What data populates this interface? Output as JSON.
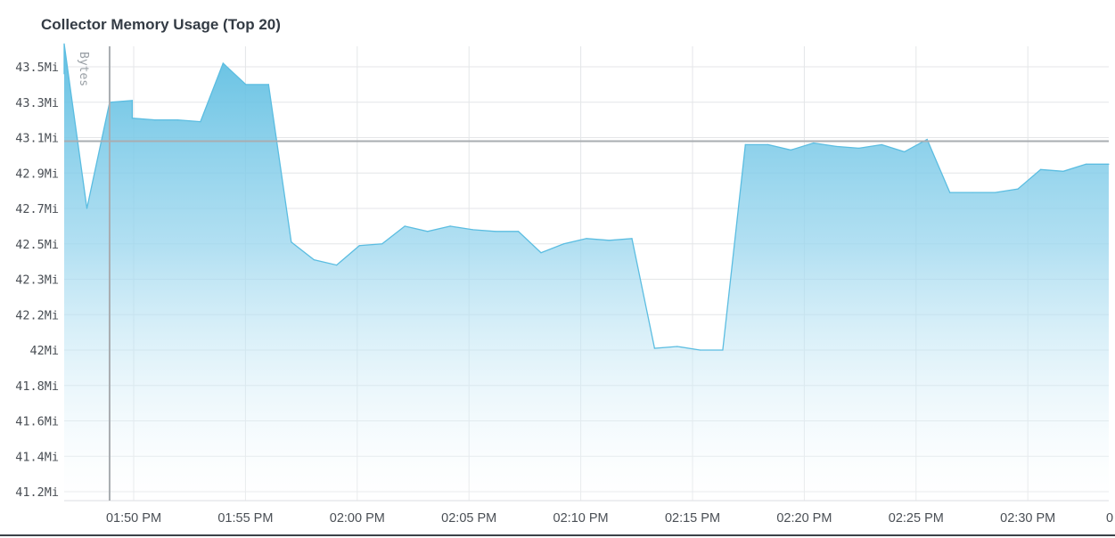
{
  "chart_data": {
    "type": "area",
    "title": "Collector Memory Usage (Top 20)",
    "ylabel": "Bytes",
    "xlabel": "",
    "y_unit": "Mi",
    "yticks": [
      "41.2Mi",
      "41.4Mi",
      "41.6Mi",
      "41.8Mi",
      "42Mi",
      "42.2Mi",
      "42.3Mi",
      "42.5Mi",
      "42.7Mi",
      "42.9Mi",
      "43.1Mi",
      "43.3Mi",
      "43.5Mi"
    ],
    "xticks": [
      "01:50 PM",
      "01:55 PM",
      "02:00 PM",
      "02:05 PM",
      "02:10 PM",
      "02:15 PM",
      "02:20 PM",
      "02:25 PM",
      "02:30 PM",
      "0"
    ],
    "x_axis": {
      "start": "01:47 PM",
      "end": "02:33 PM",
      "unit": "minutes"
    },
    "ylim": [
      41.12,
      43.63
    ],
    "grid": true,
    "threshold": 43.08,
    "cursor_time": "01:49 PM",
    "series": [
      {
        "color": "#5bbde1",
        "x": [
          "01:47 PM",
          "01:47 PM",
          "01:48 PM",
          "01:49 PM",
          "01:50 PM",
          "01:50 PM",
          "01:51 PM",
          "01:52 PM",
          "01:53 PM",
          "01:54 PM",
          "01:55 PM",
          "01:56 PM",
          "01:57 PM",
          "01:58 PM",
          "01:59 PM",
          "02:00 PM",
          "02:01 PM",
          "02:02 PM",
          "02:03 PM",
          "02:04 PM",
          "02:05 PM",
          "02:06 PM",
          "02:07 PM",
          "02:08 PM",
          "02:09 PM",
          "02:10 PM",
          "02:11 PM",
          "02:12 PM",
          "02:13 PM",
          "02:14 PM",
          "02:15 PM",
          "02:16 PM",
          "02:17 PM",
          "02:18 PM",
          "02:19 PM",
          "02:20 PM",
          "02:21 PM",
          "02:22 PM",
          "02:23 PM",
          "02:24 PM",
          "02:25 PM",
          "02:26 PM",
          "02:27 PM",
          "02:28 PM",
          "02:29 PM",
          "02:30 PM",
          "02:31 PM",
          "02:32 PM",
          "02:33 PM"
        ],
        "values": [
          43.46,
          43.63,
          42.7,
          43.3,
          43.31,
          43.21,
          43.2,
          43.2,
          43.19,
          43.52,
          43.4,
          43.4,
          42.51,
          42.41,
          42.38,
          42.49,
          42.5,
          42.6,
          42.57,
          42.6,
          42.58,
          42.57,
          42.57,
          42.45,
          42.5,
          42.53,
          42.52,
          42.53,
          42.01,
          42.02,
          42.0,
          42.0,
          43.06,
          43.06,
          43.03,
          43.07,
          43.05,
          43.04,
          43.06,
          43.02,
          43.09,
          42.79,
          42.79,
          42.79,
          42.81,
          42.92,
          42.91,
          42.95,
          42.95
        ]
      }
    ]
  }
}
